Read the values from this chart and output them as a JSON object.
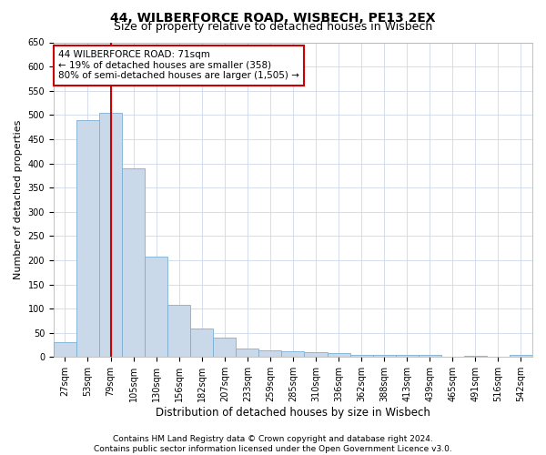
{
  "title": "44, WILBERFORCE ROAD, WISBECH, PE13 2EX",
  "subtitle": "Size of property relative to detached houses in Wisbech",
  "xlabel": "Distribution of detached houses by size in Wisbech",
  "ylabel": "Number of detached properties",
  "footer_line1": "Contains HM Land Registry data © Crown copyright and database right 2024.",
  "footer_line2": "Contains public sector information licensed under the Open Government Licence v3.0.",
  "categories": [
    "27sqm",
    "53sqm",
    "79sqm",
    "105sqm",
    "130sqm",
    "156sqm",
    "182sqm",
    "207sqm",
    "233sqm",
    "259sqm",
    "285sqm",
    "310sqm",
    "336sqm",
    "362sqm",
    "388sqm",
    "413sqm",
    "439sqm",
    "465sqm",
    "491sqm",
    "516sqm",
    "542sqm"
  ],
  "values": [
    30,
    490,
    505,
    390,
    208,
    107,
    58,
    40,
    18,
    14,
    11,
    10,
    8,
    5,
    5,
    4,
    4,
    1,
    3,
    1,
    4
  ],
  "bar_color": "#c9d9ea",
  "bar_edge_color": "#7bafd4",
  "vline_x_idx": 2,
  "vline_color": "#cc0000",
  "annotation_line1": "44 WILBERFORCE ROAD: 71sqm",
  "annotation_line2": "← 19% of detached houses are smaller (358)",
  "annotation_line3": "80% of semi-detached houses are larger (1,505) →",
  "annotation_box_color": "#cc0000",
  "ylim": [
    0,
    650
  ],
  "yticks": [
    0,
    50,
    100,
    150,
    200,
    250,
    300,
    350,
    400,
    450,
    500,
    550,
    600,
    650
  ],
  "background_color": "#ffffff",
  "grid_color": "#d0d8e8",
  "title_fontsize": 10,
  "subtitle_fontsize": 9,
  "xlabel_fontsize": 8.5,
  "ylabel_fontsize": 8,
  "tick_fontsize": 7,
  "annotation_fontsize": 7.5,
  "footer_fontsize": 6.5
}
